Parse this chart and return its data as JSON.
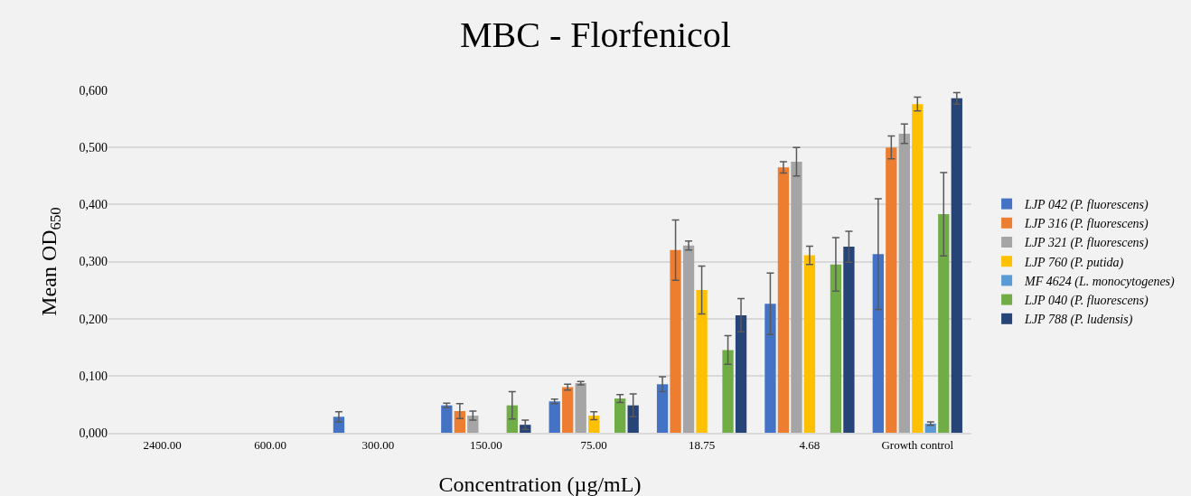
{
  "chart_data": {
    "type": "bar",
    "title": "MBC - Florfenicol",
    "xlabel": "Concentration (µg/mL)",
    "ylabel": "Mean OD$_{650}$",
    "categories": [
      "2400.00",
      "600.00",
      "300.00",
      "150.00",
      "75.00",
      "18.75",
      "4.68",
      "Growth control"
    ],
    "series": [
      {
        "name": "LJP 042 (P. fluorescens)",
        "color": "#4472c4",
        "values": [
          null,
          null,
          0.028,
          0.048,
          0.055,
          0.085,
          0.226,
          0.313
        ],
        "errors": [
          null,
          null,
          0.009,
          0.004,
          0.004,
          0.013,
          0.054,
          0.097
        ]
      },
      {
        "name": "LJP 316 (P. fluorescens)",
        "color": "#ed7d31",
        "values": [
          null,
          null,
          null,
          0.038,
          0.08,
          0.32,
          0.465,
          0.5
        ],
        "errors": [
          null,
          null,
          null,
          0.013,
          0.005,
          0.053,
          0.01,
          0.02
        ]
      },
      {
        "name": "LJP 321 (P. fluorescens)",
        "color": "#a5a5a5",
        "values": [
          null,
          null,
          null,
          0.03,
          0.087,
          0.328,
          0.475,
          0.524
        ],
        "errors": [
          null,
          null,
          null,
          0.008,
          0.003,
          0.008,
          0.025,
          0.017
        ]
      },
      {
        "name": "LJP 760 (P. putida)",
        "color": "#ffc000",
        "values": [
          null,
          null,
          null,
          null,
          0.03,
          0.25,
          0.311,
          0.576
        ],
        "errors": [
          null,
          null,
          null,
          null,
          0.007,
          0.042,
          0.016,
          0.012
        ]
      },
      {
        "name": "MF 4624 (L. monocytogenes)",
        "color": "#5b9bd5",
        "values": [
          null,
          null,
          null,
          null,
          null,
          null,
          null,
          0.016
        ],
        "errors": [
          null,
          null,
          null,
          null,
          null,
          null,
          null,
          0.003
        ]
      },
      {
        "name": "LJP 040 (P. fluorescens)",
        "color": "#70ad47",
        "values": [
          null,
          null,
          null,
          0.048,
          0.06,
          0.145,
          0.295,
          0.383
        ],
        "errors": [
          null,
          null,
          null,
          0.024,
          0.007,
          0.025,
          0.047,
          0.073
        ]
      },
      {
        "name": "LJP 788 (P. ludensis)",
        "color": "#264478",
        "values": [
          null,
          null,
          null,
          0.014,
          0.048,
          0.206,
          0.326,
          0.586
        ],
        "errors": [
          null,
          null,
          null,
          0.008,
          0.02,
          0.029,
          0.027,
          0.01
        ]
      }
    ],
    "ylim": [
      0,
      0.6
    ],
    "yticks": [
      {
        "value": 0,
        "label": "0,000"
      },
      {
        "value": 0.1,
        "label": "0,100"
      },
      {
        "value": 0.2,
        "label": "0,200"
      },
      {
        "value": 0.3,
        "label": "0,300"
      },
      {
        "value": 0.4,
        "label": "0,400"
      },
      {
        "value": 0.5,
        "label": "0,500"
      },
      {
        "value": 0.6,
        "label": "0,600"
      }
    ],
    "grid": "y",
    "legend": "right"
  }
}
